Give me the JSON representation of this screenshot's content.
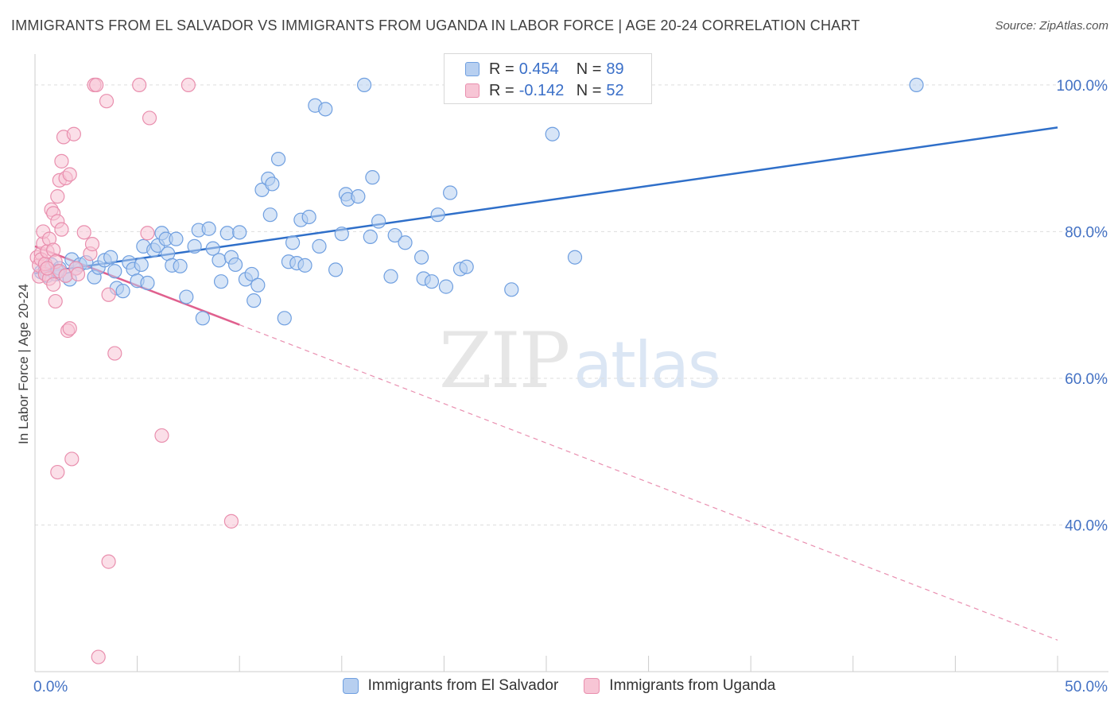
{
  "title": "IMMIGRANTS FROM EL SALVADOR VS IMMIGRANTS FROM UGANDA IN LABOR FORCE | AGE 20-24 CORRELATION CHART",
  "source": "Source: ZipAtlas.com",
  "watermark": {
    "zip": "ZIP",
    "atlas": "atlas"
  },
  "legend": {
    "row1": {
      "r_label": "R =",
      "r_value": "0.454",
      "n_label": "N =",
      "n_value": "89"
    },
    "row2": {
      "r_label": "R =",
      "r_value": "-0.142",
      "n_label": "N =",
      "n_value": "52"
    }
  },
  "colors": {
    "blue_fill": "#b7cff0",
    "blue_stroke": "#6f9fe0",
    "blue_line": "#2f6fc9",
    "pink_fill": "#f7c5d5",
    "pink_stroke": "#e98fae",
    "pink_line": "#e0608e",
    "grid": "#dddddd",
    "tick_text": "#4472c4"
  },
  "chart_data": {
    "type": "scatter",
    "xlabel": "",
    "ylabel": "In Labor Force | Age 20-24",
    "xlim": [
      0,
      50
    ],
    "ylim": [
      20,
      104
    ],
    "x_tick_labels": [
      {
        "value": 0,
        "label": "0.0%"
      },
      {
        "value": 50,
        "label": "50.0%"
      }
    ],
    "y_tick_labels": [
      {
        "value": 100,
        "label": "100.0%"
      },
      {
        "value": 80,
        "label": "80.0%"
      },
      {
        "value": 60,
        "label": "60.0%"
      },
      {
        "value": 40,
        "label": "40.0%"
      }
    ],
    "grid": true,
    "series": [
      {
        "name": "Immigrants from El Salvador",
        "color": "#6f9fe0",
        "trend": {
          "x0": 0,
          "y0": 74.3,
          "x1": 50,
          "y1": 94.2,
          "extend_dashed_to": null
        },
        "points": [
          [
            0.3,
            74.5
          ],
          [
            0.5,
            74.8
          ],
          [
            0.6,
            74.0
          ],
          [
            0.8,
            75.5
          ],
          [
            1.0,
            74.2
          ],
          [
            1.2,
            75.0
          ],
          [
            1.5,
            74.0
          ],
          [
            1.7,
            73.5
          ],
          [
            1.8,
            76.2
          ],
          [
            2.2,
            75.5
          ],
          [
            2.5,
            75.8
          ],
          [
            2.9,
            73.8
          ],
          [
            3.1,
            75.1
          ],
          [
            3.4,
            76.1
          ],
          [
            3.7,
            76.5
          ],
          [
            4.0,
            72.3
          ],
          [
            4.3,
            71.9
          ],
          [
            4.6,
            75.8
          ],
          [
            4.8,
            74.9
          ],
          [
            5.0,
            73.3
          ],
          [
            5.2,
            75.5
          ],
          [
            5.3,
            78.0
          ],
          [
            5.5,
            73.0
          ],
          [
            5.8,
            77.5
          ],
          [
            6.0,
            78.1
          ],
          [
            6.2,
            79.8
          ],
          [
            6.4,
            79.0
          ],
          [
            6.5,
            77.0
          ],
          [
            6.7,
            75.4
          ],
          [
            6.9,
            79.0
          ],
          [
            7.1,
            75.3
          ],
          [
            7.4,
            71.1
          ],
          [
            7.8,
            78.0
          ],
          [
            8.0,
            80.2
          ],
          [
            8.2,
            68.2
          ],
          [
            8.5,
            80.4
          ],
          [
            8.7,
            77.7
          ],
          [
            9.0,
            76.1
          ],
          [
            9.1,
            73.2
          ],
          [
            9.4,
            79.8
          ],
          [
            9.6,
            76.5
          ],
          [
            9.8,
            75.5
          ],
          [
            10.0,
            79.9
          ],
          [
            10.3,
            73.5
          ],
          [
            10.6,
            74.2
          ],
          [
            10.7,
            70.6
          ],
          [
            10.9,
            72.7
          ],
          [
            11.1,
            85.7
          ],
          [
            11.4,
            87.2
          ],
          [
            11.6,
            86.5
          ],
          [
            11.5,
            82.3
          ],
          [
            11.9,
            89.9
          ],
          [
            12.2,
            68.2
          ],
          [
            12.4,
            75.9
          ],
          [
            12.6,
            78.5
          ],
          [
            12.8,
            75.7
          ],
          [
            13.0,
            81.6
          ],
          [
            13.2,
            75.4
          ],
          [
            13.4,
            82.0
          ],
          [
            13.7,
            97.2
          ],
          [
            13.9,
            78.0
          ],
          [
            14.2,
            96.7
          ],
          [
            14.7,
            74.8
          ],
          [
            15.0,
            79.7
          ],
          [
            15.2,
            85.1
          ],
          [
            15.3,
            84.4
          ],
          [
            15.8,
            84.8
          ],
          [
            16.1,
            100.0
          ],
          [
            16.5,
            87.4
          ],
          [
            16.4,
            79.3
          ],
          [
            16.8,
            81.4
          ],
          [
            17.6,
            79.5
          ],
          [
            17.4,
            73.9
          ],
          [
            18.1,
            78.5
          ],
          [
            18.9,
            76.5
          ],
          [
            19.0,
            73.6
          ],
          [
            19.4,
            73.2
          ],
          [
            19.7,
            82.3
          ],
          [
            20.1,
            72.5
          ],
          [
            20.3,
            85.3
          ],
          [
            20.8,
            74.9
          ],
          [
            21.1,
            75.2
          ],
          [
            23.3,
            72.1
          ],
          [
            25.3,
            93.3
          ],
          [
            26.4,
            76.5
          ],
          [
            43.1,
            100.0
          ],
          [
            3.9,
            74.6
          ],
          [
            2.0,
            75.0
          ],
          [
            1.1,
            74.6
          ]
        ]
      },
      {
        "name": "Immigrants from Uganda",
        "color": "#e98fae",
        "trend": {
          "x0": 0,
          "y0": 78.0,
          "x1": 10.0,
          "y1": 67.3,
          "extend_dashed_to": {
            "x": 50,
            "y": 24.3
          }
        },
        "points": [
          [
            0.1,
            76.5
          ],
          [
            0.2,
            73.9
          ],
          [
            0.2,
            75.4
          ],
          [
            0.3,
            77.0
          ],
          [
            0.3,
            76.2
          ],
          [
            0.4,
            78.4
          ],
          [
            0.4,
            80.0
          ],
          [
            0.5,
            74.2
          ],
          [
            0.5,
            75.6
          ],
          [
            0.6,
            77.3
          ],
          [
            0.7,
            73.6
          ],
          [
            0.7,
            79.0
          ],
          [
            0.8,
            83.0
          ],
          [
            0.9,
            82.5
          ],
          [
            0.9,
            77.5
          ],
          [
            1.0,
            70.5
          ],
          [
            1.0,
            75.9
          ],
          [
            1.1,
            84.8
          ],
          [
            1.1,
            81.4
          ],
          [
            1.2,
            74.6
          ],
          [
            1.2,
            87.0
          ],
          [
            1.3,
            89.6
          ],
          [
            1.3,
            80.3
          ],
          [
            1.4,
            92.9
          ],
          [
            1.5,
            87.3
          ],
          [
            1.5,
            74.0
          ],
          [
            1.6,
            66.5
          ],
          [
            1.7,
            66.8
          ],
          [
            1.7,
            87.8
          ],
          [
            1.8,
            49.0
          ],
          [
            1.1,
            47.2
          ],
          [
            1.9,
            93.3
          ],
          [
            2.0,
            75.0
          ],
          [
            2.1,
            74.2
          ],
          [
            2.4,
            79.9
          ],
          [
            2.7,
            77.0
          ],
          [
            2.8,
            78.3
          ],
          [
            2.9,
            100.0
          ],
          [
            3.0,
            100.0
          ],
          [
            3.1,
            22.0
          ],
          [
            3.5,
            97.8
          ],
          [
            3.6,
            35.0
          ],
          [
            3.6,
            71.4
          ],
          [
            3.9,
            63.4
          ],
          [
            5.1,
            100.0
          ],
          [
            5.5,
            79.8
          ],
          [
            5.6,
            95.5
          ],
          [
            6.2,
            52.2
          ],
          [
            7.5,
            100.0
          ],
          [
            9.6,
            40.5
          ],
          [
            0.9,
            72.8
          ],
          [
            0.6,
            75.0
          ]
        ]
      }
    ]
  }
}
